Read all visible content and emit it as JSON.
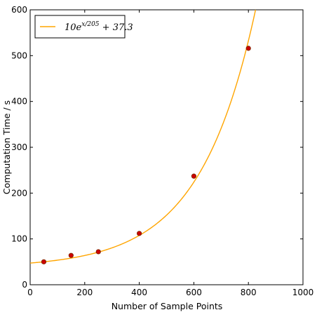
{
  "chart_data": {
    "type": "scatter",
    "title": "",
    "xlabel": "Number of Sample Points",
    "ylabel": "Computation Time / s",
    "xlim": [
      0,
      1000
    ],
    "ylim": [
      0,
      600
    ],
    "xticks": [
      0,
      200,
      400,
      600,
      800,
      1000
    ],
    "yticks": [
      0,
      100,
      200,
      300,
      400,
      500,
      600
    ],
    "grid": false,
    "legend_position": "top-left",
    "series": [
      {
        "kind": "scatter",
        "x": [
          50,
          150,
          250,
          400,
          600,
          800
        ],
        "y": [
          50,
          64,
          72,
          112,
          237,
          516
        ],
        "color": "#cc0000",
        "edge_color": "#7a2a00"
      },
      {
        "kind": "line",
        "name": "10e^{x/205} + 37.3",
        "formula": {
          "a": 10,
          "b": 205,
          "c": 37.3
        },
        "color": "#ffa500"
      }
    ],
    "legend": {
      "label_main": "10e",
      "label_exp": "x/205",
      "label_tail": " + 37.3"
    }
  }
}
